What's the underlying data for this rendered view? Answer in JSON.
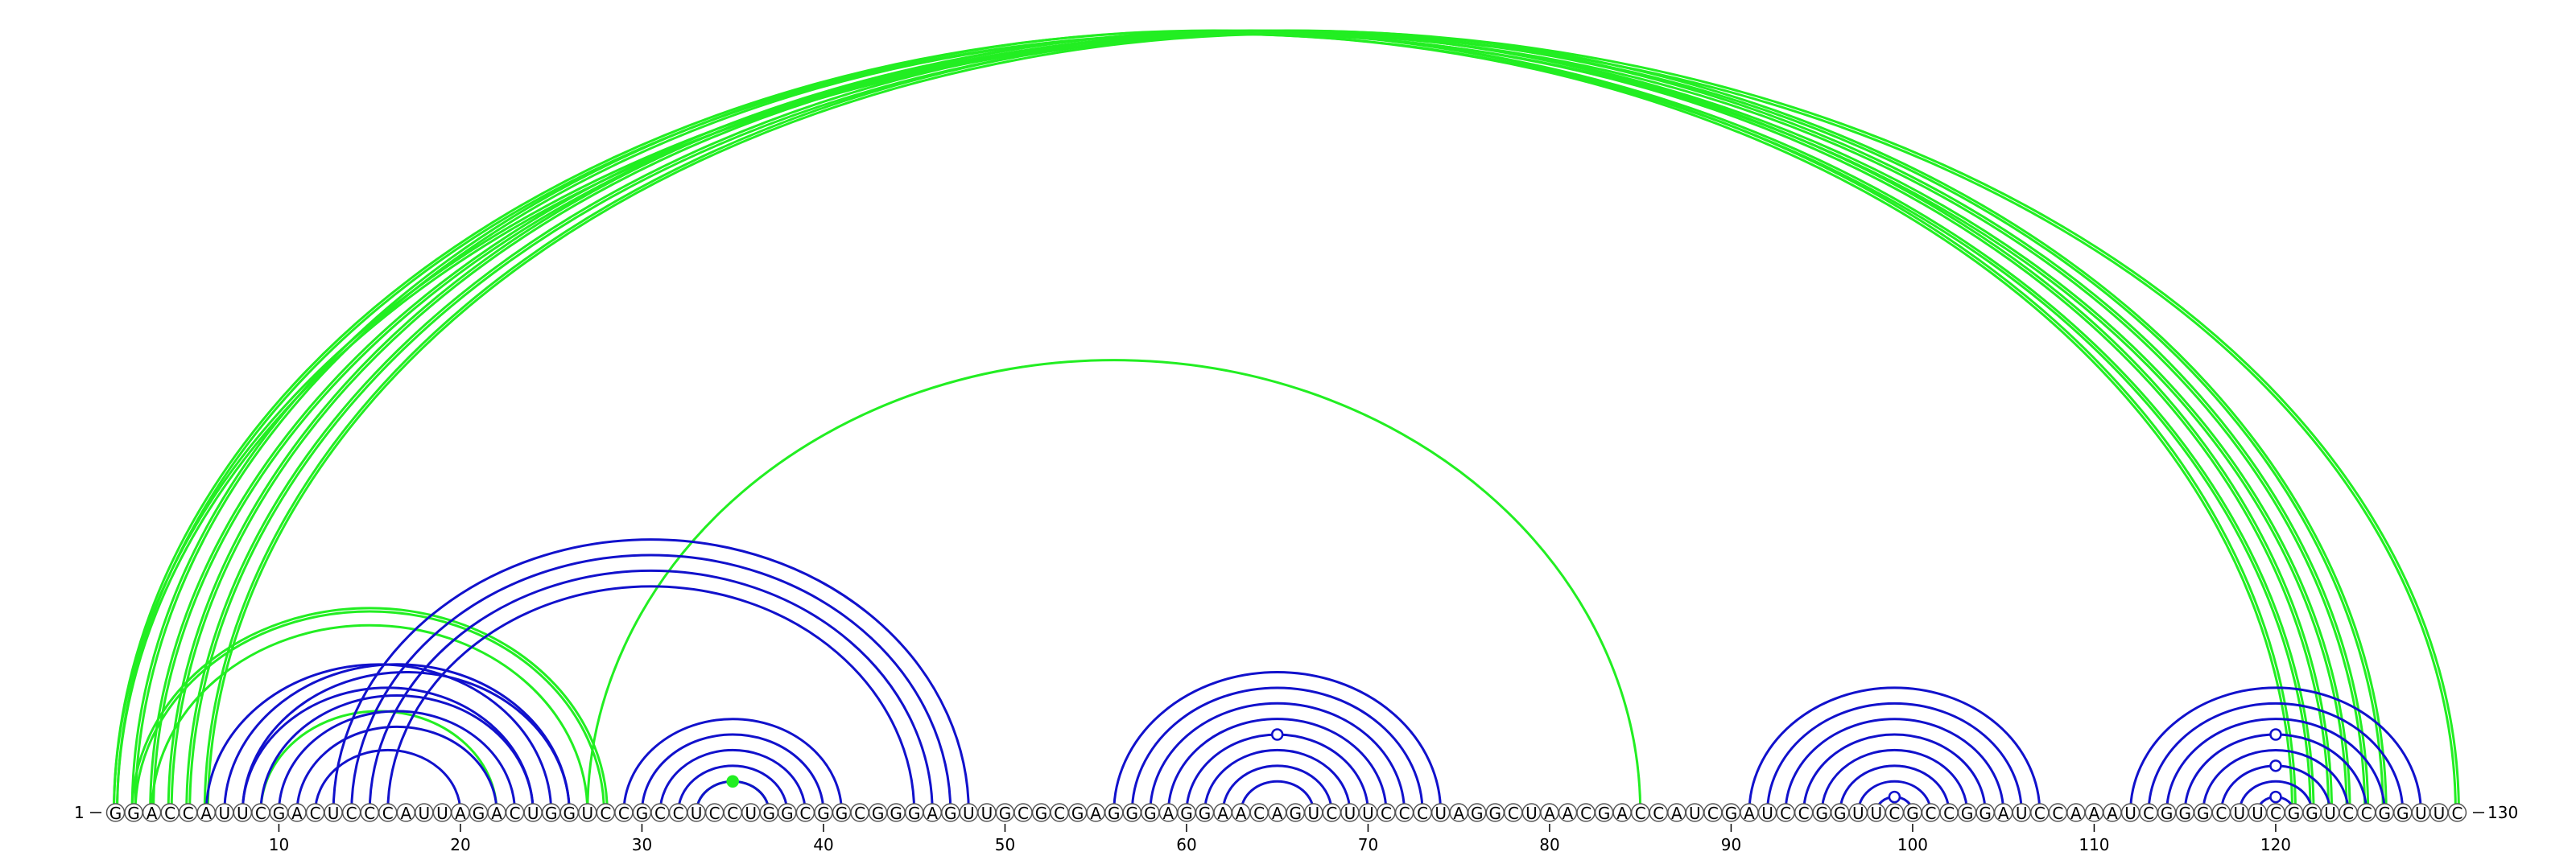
{
  "sequence": "GGACCAUUCGACUCCCAUUAGACUGGUCCGCCUCCUGGCGGCGGGAGUUGCGCGAGGGAGGAACAGUCUUCCCUAGGCUAACGACCAUCGAUCCGGUUCGCCGGAUCCAAAUCGGGCUUCGGUCCGGUUC",
  "start_label": "1",
  "end_label": "130",
  "ticks": [
    10,
    20,
    30,
    40,
    50,
    60,
    70,
    80,
    90,
    100,
    110,
    120
  ],
  "colors": {
    "green": "#22ee22",
    "blue": "#1111cc"
  },
  "arcs": [
    {
      "i": 1,
      "j": 122,
      "color": "green",
      "lines": 2
    },
    {
      "i": 2,
      "j": 121,
      "color": "green",
      "lines": 2
    },
    {
      "i": 3,
      "j": 124,
      "color": "green",
      "lines": 2
    },
    {
      "i": 4,
      "j": 123,
      "color": "green",
      "lines": 2
    },
    {
      "i": 5,
      "j": 125,
      "color": "green",
      "lines": 2
    },
    {
      "i": 6,
      "j": 126,
      "color": "green",
      "lines": 2
    },
    {
      "i": 1,
      "j": 130,
      "color": "green",
      "lines": 2
    },
    {
      "i": 27,
      "j": 85,
      "color": "green",
      "lines": 1
    },
    {
      "i": 2,
      "j": 28,
      "color": "green",
      "lines": 2
    },
    {
      "i": 3,
      "j": 27,
      "color": "green",
      "lines": 1
    },
    {
      "i": 9,
      "j": 22,
      "color": "green",
      "lines": 1
    },
    {
      "i": 33,
      "j": 37,
      "color": "green",
      "lines": 1
    },
    {
      "i": 6,
      "j": 25,
      "color": "blue",
      "lines": 1
    },
    {
      "i": 7,
      "j": 26,
      "color": "blue",
      "lines": 1
    },
    {
      "i": 8,
      "j": 26,
      "color": "blue",
      "lines": 1
    },
    {
      "i": 8,
      "j": 24,
      "color": "blue",
      "lines": 1
    },
    {
      "i": 9,
      "j": 24,
      "color": "blue",
      "lines": 1
    },
    {
      "i": 10,
      "j": 23,
      "color": "blue",
      "lines": 1
    },
    {
      "i": 11,
      "j": 22,
      "color": "blue",
      "lines": 1
    },
    {
      "i": 12,
      "j": 20,
      "color": "blue",
      "lines": 1
    },
    {
      "i": 13,
      "j": 48,
      "color": "blue",
      "lines": 1
    },
    {
      "i": 14,
      "j": 47,
      "color": "blue",
      "lines": 1
    },
    {
      "i": 15,
      "j": 46,
      "color": "blue",
      "lines": 1
    },
    {
      "i": 16,
      "j": 45,
      "color": "blue",
      "lines": 1
    },
    {
      "i": 29,
      "j": 41,
      "color": "blue",
      "lines": 1
    },
    {
      "i": 30,
      "j": 40,
      "color": "blue",
      "lines": 1
    },
    {
      "i": 31,
      "j": 39,
      "color": "blue",
      "lines": 1
    },
    {
      "i": 32,
      "j": 38,
      "color": "blue",
      "lines": 1
    },
    {
      "i": 33,
      "j": 37,
      "color": "blue",
      "lines": 1
    },
    {
      "i": 56,
      "j": 74,
      "color": "blue",
      "lines": 1
    },
    {
      "i": 57,
      "j": 73,
      "color": "blue",
      "lines": 1
    },
    {
      "i": 58,
      "j": 72,
      "color": "blue",
      "lines": 1
    },
    {
      "i": 59,
      "j": 71,
      "color": "blue",
      "lines": 1
    },
    {
      "i": 60,
      "j": 70,
      "color": "blue",
      "lines": 1
    },
    {
      "i": 61,
      "j": 69,
      "color": "blue",
      "lines": 1
    },
    {
      "i": 62,
      "j": 68,
      "color": "blue",
      "lines": 1
    },
    {
      "i": 63,
      "j": 67,
      "color": "blue",
      "lines": 1
    },
    {
      "i": 91,
      "j": 107,
      "color": "blue",
      "lines": 1
    },
    {
      "i": 92,
      "j": 106,
      "color": "blue",
      "lines": 1
    },
    {
      "i": 93,
      "j": 105,
      "color": "blue",
      "lines": 1
    },
    {
      "i": 94,
      "j": 104,
      "color": "blue",
      "lines": 1
    },
    {
      "i": 95,
      "j": 103,
      "color": "blue",
      "lines": 1
    },
    {
      "i": 96,
      "j": 102,
      "color": "blue",
      "lines": 1
    },
    {
      "i": 97,
      "j": 101,
      "color": "blue",
      "lines": 1
    },
    {
      "i": 98,
      "j": 100,
      "color": "blue",
      "lines": 1
    },
    {
      "i": 112,
      "j": 128,
      "color": "blue",
      "lines": 1
    },
    {
      "i": 113,
      "j": 127,
      "color": "blue",
      "lines": 1
    },
    {
      "i": 114,
      "j": 126,
      "color": "blue",
      "lines": 1
    },
    {
      "i": 115,
      "j": 125,
      "color": "blue",
      "lines": 1
    },
    {
      "i": 116,
      "j": 124,
      "color": "blue",
      "lines": 1
    },
    {
      "i": 117,
      "j": 123,
      "color": "blue",
      "lines": 1
    },
    {
      "i": 118,
      "j": 122,
      "color": "blue",
      "lines": 1
    },
    {
      "i": 119,
      "j": 121,
      "color": "blue",
      "lines": 1
    }
  ],
  "markers": [
    {
      "pos": 35,
      "color": "green",
      "filled": true,
      "arc_i": 33,
      "arc_j": 37
    },
    {
      "pos": 65,
      "color": "blue",
      "filled": false,
      "arc_i": 60,
      "arc_j": 70
    },
    {
      "pos": 99,
      "color": "blue",
      "filled": false,
      "arc_i": 98,
      "arc_j": 100
    },
    {
      "pos": 120,
      "color": "blue",
      "filled": false,
      "arc_i": 115,
      "arc_j": 125
    },
    {
      "pos": 120,
      "color": "blue",
      "filled": false,
      "arc_i": 117,
      "arc_j": 123
    },
    {
      "pos": 120,
      "color": "blue",
      "filled": false,
      "arc_i": 119,
      "arc_j": 121
    }
  ]
}
